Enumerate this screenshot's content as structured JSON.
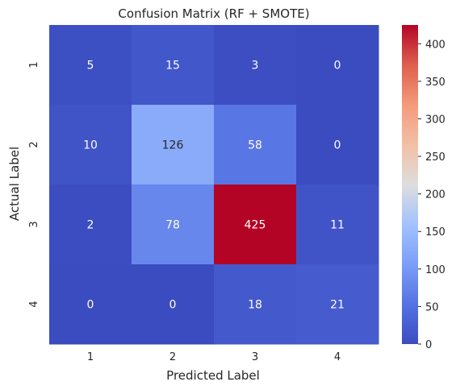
{
  "chart_data": {
    "type": "heatmap",
    "title": "Confusion Matrix (RF + SMOTE)",
    "xlabel": "Predicted Label",
    "ylabel": "Actual Label",
    "x_categories": [
      "1",
      "2",
      "3",
      "4"
    ],
    "y_categories": [
      "1",
      "2",
      "3",
      "4"
    ],
    "values": [
      [
        5,
        15,
        3,
        0
      ],
      [
        10,
        126,
        58,
        0
      ],
      [
        2,
        78,
        425,
        11
      ],
      [
        0,
        0,
        18,
        21
      ]
    ],
    "colormap": "coolwarm",
    "color_range": [
      0,
      425
    ],
    "colorbar": {
      "ticks": [
        0,
        50,
        100,
        150,
        200,
        250,
        300,
        350,
        400
      ],
      "labels": [
        "0",
        "50",
        "100",
        "150",
        "200",
        "250",
        "300",
        "350",
        "400"
      ]
    },
    "grid": false
  }
}
